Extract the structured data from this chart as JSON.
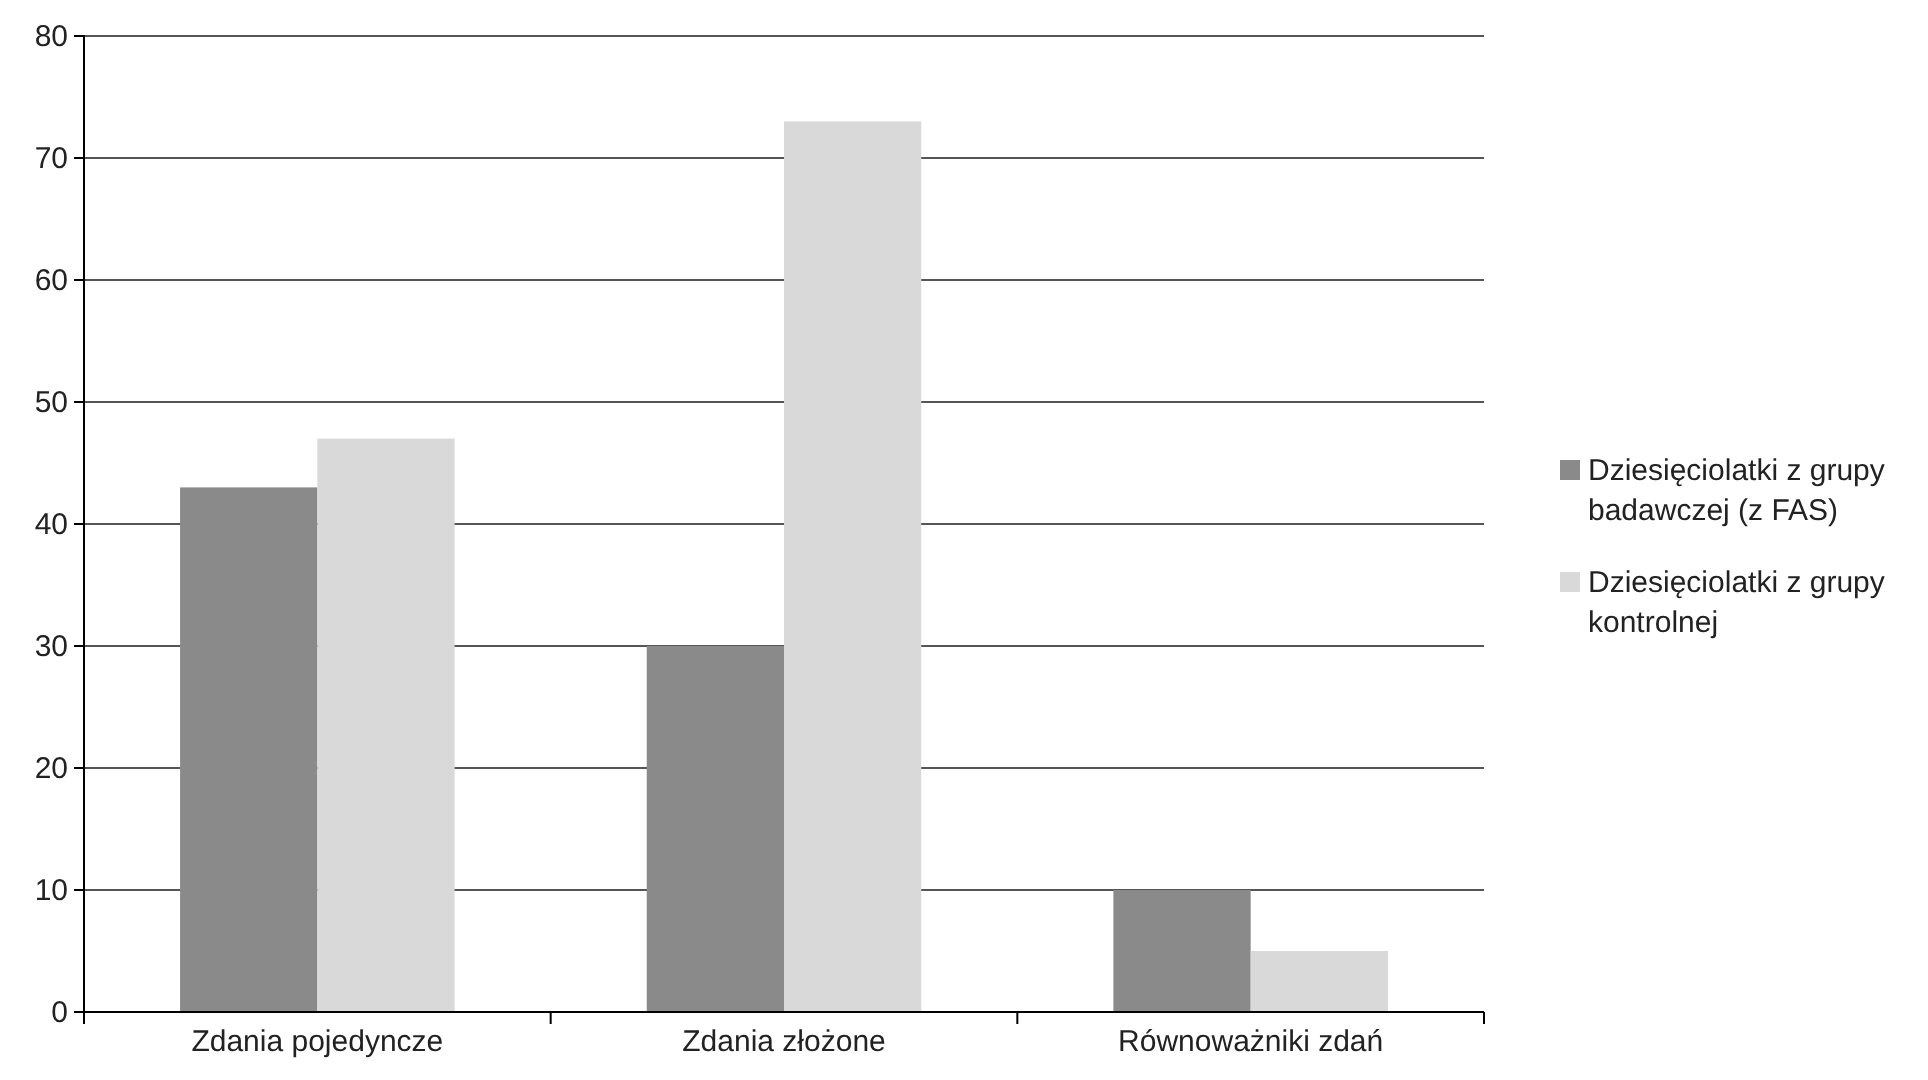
{
  "chart_data": {
    "type": "bar",
    "categories": [
      "Zdania pojedyncze",
      "Zdania złożone",
      "Równoważniki zdań"
    ],
    "series": [
      {
        "name": "Dziesięciolatki z grupy badawczej (z FAS)",
        "color": "#8a8a8a",
        "values": [
          43,
          30,
          10
        ]
      },
      {
        "name": "Dziesięciolatki z grupy kontrolnej",
        "color": "#d9d9d9",
        "values": [
          47,
          73,
          5
        ]
      }
    ],
    "ylim": [
      0,
      80
    ],
    "yticks": [
      0,
      10,
      20,
      30,
      40,
      50,
      60,
      70,
      80
    ],
    "grid": "y",
    "legend": "right"
  }
}
